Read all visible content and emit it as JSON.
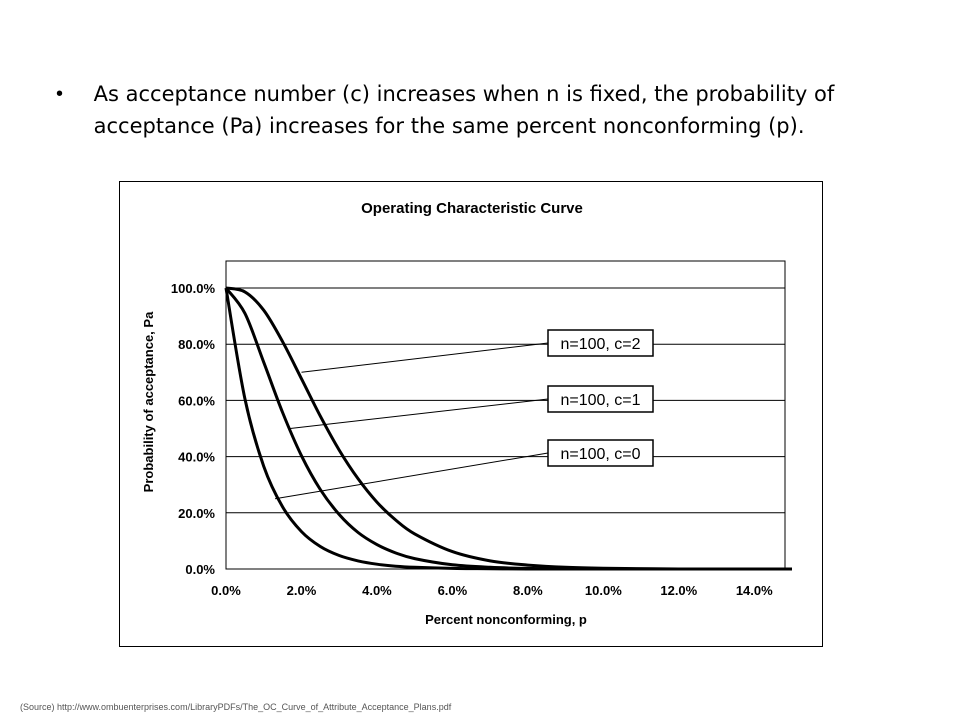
{
  "slide": {
    "bullet_symbol": "•",
    "bullet_text": "As acceptance number (c) increases when n is fixed, the probability of acceptance (Pa) increases for the same percent nonconforming (p).",
    "source": "(Source) http://www.ombuenterprises.com/LibraryPDFs/The_OC_Curve_of_Attribute_Acceptance_Plans.pdf"
  },
  "chart_data": {
    "type": "line",
    "title": "Operating Characteristic Curve",
    "xlabel": "Percent nonconforming, p",
    "ylabel": "Probability of acceptance, Pa",
    "xlim": [
      0,
      15
    ],
    "ylim": [
      0,
      100
    ],
    "x_ticks": [
      "0.0%",
      "2.0%",
      "4.0%",
      "6.0%",
      "8.0%",
      "10.0%",
      "12.0%",
      "14.0%"
    ],
    "y_ticks": [
      "0.0%",
      "20.0%",
      "40.0%",
      "60.0%",
      "80.0%",
      "100.0%"
    ],
    "grid": "horizontal",
    "x": [
      0,
      0.5,
      1,
      1.5,
      2,
      2.5,
      3,
      3.5,
      4,
      4.5,
      5,
      6,
      7,
      8,
      9,
      10,
      12,
      14,
      15
    ],
    "series": [
      {
        "name": "n=100, c=0",
        "values": [
          100,
          60.6,
          36.6,
          22.1,
          13.3,
          8.0,
          4.8,
          2.9,
          1.7,
          1.0,
          0.6,
          0.2,
          0.1,
          0.0,
          0.0,
          0.0,
          0.0,
          0.0,
          0.0
        ]
      },
      {
        "name": "n=100, c=1",
        "values": [
          100,
          91.0,
          73.6,
          55.7,
          40.3,
          28.3,
          19.4,
          13.0,
          8.7,
          5.7,
          3.7,
          1.5,
          0.6,
          0.2,
          0.1,
          0.0,
          0.0,
          0.0,
          0.0
        ]
      },
      {
        "name": "n=100, c=2",
        "values": [
          100,
          98.6,
          92.1,
          80.9,
          67.7,
          54.4,
          42.3,
          32.1,
          23.8,
          17.4,
          12.5,
          6.2,
          2.9,
          1.4,
          0.6,
          0.3,
          0.0,
          0.0,
          0.0
        ]
      }
    ],
    "annotations": [
      {
        "text": "n=100, c=2",
        "series": "n=100, c=2",
        "point_x": 2.0,
        "point_y": 70.0
      },
      {
        "text": "n=100, c=1",
        "series": "n=100, c=1",
        "point_x": 1.7,
        "point_y": 50.0
      },
      {
        "text": "n=100, c=0",
        "series": "n=100, c=0",
        "point_x": 1.3,
        "point_y": 25.0
      }
    ]
  }
}
